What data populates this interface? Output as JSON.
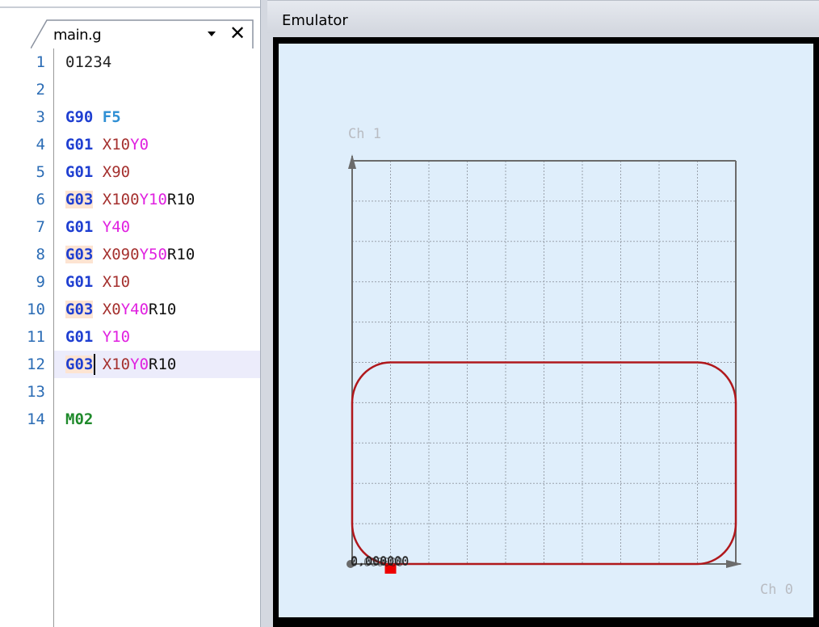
{
  "editor": {
    "tab": {
      "label": "main.g",
      "dropdown_icon": "dropdown-arrow-icon",
      "close_icon": "close-icon"
    },
    "cursor_line": 12,
    "lines": [
      {
        "num": "1",
        "tokens": [
          {
            "text": "01234",
            "color": "#222222",
            "bold": false
          }
        ]
      },
      {
        "num": "2",
        "tokens": []
      },
      {
        "num": "3",
        "tokens": [
          {
            "text": "G90",
            "color": "#1f3fd1",
            "bold": true
          },
          {
            "text": " ",
            "color": "#222222",
            "bold": false
          },
          {
            "text": "F5",
            "color": "#2f8fd4",
            "bold": true
          }
        ]
      },
      {
        "num": "4",
        "tokens": [
          {
            "text": "G01",
            "color": "#1f3fd1",
            "bold": true
          },
          {
            "text": " ",
            "color": "#222222",
            "bold": false
          },
          {
            "text": "X10",
            "color": "#a5312f",
            "bold": false
          },
          {
            "text": "Y0",
            "color": "#e021e0",
            "bold": false
          }
        ]
      },
      {
        "num": "5",
        "tokens": [
          {
            "text": "G01",
            "color": "#1f3fd1",
            "bold": true
          },
          {
            "text": " ",
            "color": "#222222",
            "bold": false
          },
          {
            "text": "X90",
            "color": "#a5312f",
            "bold": false
          }
        ]
      },
      {
        "num": "6",
        "tokens": [
          {
            "text": "G03",
            "color": "#1f3fd1",
            "bold": true,
            "hl": true
          },
          {
            "text": " ",
            "color": "#222222",
            "bold": false
          },
          {
            "text": "X100",
            "color": "#a5312f",
            "bold": false
          },
          {
            "text": "Y10",
            "color": "#e021e0",
            "bold": false
          },
          {
            "text": "R10",
            "color": "#111111",
            "bold": false
          }
        ]
      },
      {
        "num": "7",
        "tokens": [
          {
            "text": "G01",
            "color": "#1f3fd1",
            "bold": true
          },
          {
            "text": " ",
            "color": "#222222",
            "bold": false
          },
          {
            "text": "Y40",
            "color": "#e021e0",
            "bold": false
          }
        ]
      },
      {
        "num": "8",
        "tokens": [
          {
            "text": "G03",
            "color": "#1f3fd1",
            "bold": true,
            "hl": true
          },
          {
            "text": " ",
            "color": "#222222",
            "bold": false
          },
          {
            "text": "X090",
            "color": "#a5312f",
            "bold": false
          },
          {
            "text": "Y50",
            "color": "#e021e0",
            "bold": false
          },
          {
            "text": "R10",
            "color": "#111111",
            "bold": false
          }
        ]
      },
      {
        "num": "9",
        "tokens": [
          {
            "text": "G01",
            "color": "#1f3fd1",
            "bold": true
          },
          {
            "text": " ",
            "color": "#222222",
            "bold": false
          },
          {
            "text": "X10",
            "color": "#a5312f",
            "bold": false
          }
        ]
      },
      {
        "num": "10",
        "tokens": [
          {
            "text": "G03",
            "color": "#1f3fd1",
            "bold": true,
            "hl": true
          },
          {
            "text": " ",
            "color": "#222222",
            "bold": false
          },
          {
            "text": "X0",
            "color": "#a5312f",
            "bold": false
          },
          {
            "text": "Y40",
            "color": "#e021e0",
            "bold": false
          },
          {
            "text": "R10",
            "color": "#111111",
            "bold": false
          }
        ]
      },
      {
        "num": "11",
        "tokens": [
          {
            "text": "G01",
            "color": "#1f3fd1",
            "bold": true
          },
          {
            "text": " ",
            "color": "#222222",
            "bold": false
          },
          {
            "text": "Y10",
            "color": "#e021e0",
            "bold": false
          }
        ]
      },
      {
        "num": "12",
        "tokens": [
          {
            "text": "G03",
            "color": "#1f3fd1",
            "bold": true,
            "hl": true
          },
          {
            "text": " ",
            "color": "#222222",
            "bold": false
          },
          {
            "text": "X10",
            "color": "#a5312f",
            "bold": false
          },
          {
            "text": "Y0",
            "color": "#e021e0",
            "bold": false
          },
          {
            "text": "R10",
            "color": "#111111",
            "bold": false
          }
        ]
      },
      {
        "num": "13",
        "tokens": []
      },
      {
        "num": "14",
        "tokens": [
          {
            "text": "M02",
            "color": "#1f8a2b",
            "bold": true
          }
        ]
      }
    ]
  },
  "emulator": {
    "title": "Emulator",
    "y_axis_label": "Ch 1",
    "x_axis_label": "Ch 0",
    "coord_readout": "0.000000",
    "x_range": [
      0,
      100
    ],
    "y_range": [
      0,
      100
    ],
    "grid_divisions": 10,
    "path_color": "#b0181c",
    "axis_color": "#6b6b6b",
    "marker_color": "#ee0000",
    "path": [
      {
        "cmd": "G01",
        "x": 10,
        "y": 0
      },
      {
        "cmd": "G01",
        "x": 90,
        "y": 0
      },
      {
        "cmd": "G03",
        "x": 100,
        "y": 10,
        "r": 10
      },
      {
        "cmd": "G01",
        "x": 100,
        "y": 40
      },
      {
        "cmd": "G03",
        "x": 90,
        "y": 50,
        "r": 10
      },
      {
        "cmd": "G01",
        "x": 10,
        "y": 50
      },
      {
        "cmd": "G03",
        "x": 0,
        "y": 40,
        "r": 10
      },
      {
        "cmd": "G01",
        "x": 0,
        "y": 10
      },
      {
        "cmd": "G03",
        "x": 10,
        "y": 0,
        "r": 10
      }
    ]
  }
}
